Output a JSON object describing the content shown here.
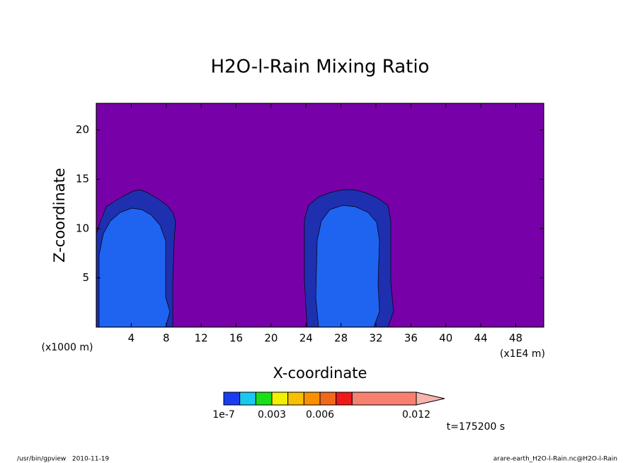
{
  "chart_data": {
    "type": "contour",
    "title": "H2O-l-Rain Mixing Ratio",
    "x_label": "X-coordinate",
    "y_label": "Z-coordinate",
    "x_unit_left": "(x1000 m)",
    "x_unit_right": "(x1E4 m)",
    "xlim": [
      0,
      51.2
    ],
    "xticks": [
      4,
      8,
      12,
      16,
      20,
      24,
      28,
      32,
      36,
      40,
      44,
      48
    ],
    "ylim": [
      0,
      22.7
    ],
    "yticks": [
      5,
      10,
      15,
      20
    ],
    "background_color": "#7800a8",
    "colorbar": {
      "bounds": [
        1e-07,
        0.001,
        0.002,
        0.003,
        0.004,
        0.005,
        0.006,
        0.007,
        0.008,
        0.012
      ],
      "colors": [
        "#1c3cf0",
        "#18c8f0",
        "#18e018",
        "#f0f000",
        "#f8c000",
        "#f89000",
        "#f06818",
        "#f01818",
        "#f88070"
      ],
      "over_color": "#f8b4ac",
      "ticks": [
        {
          "value": 1e-07,
          "label": "1e-7"
        },
        0.003,
        0.006,
        0.012
      ]
    },
    "time_label": "t=175200 s",
    "footer_left": "/usr/bin/gpview   2010-11-19",
    "footer_right": "arare-earth_H2O-l-Rain.nc@H2O-l-Rain"
  }
}
